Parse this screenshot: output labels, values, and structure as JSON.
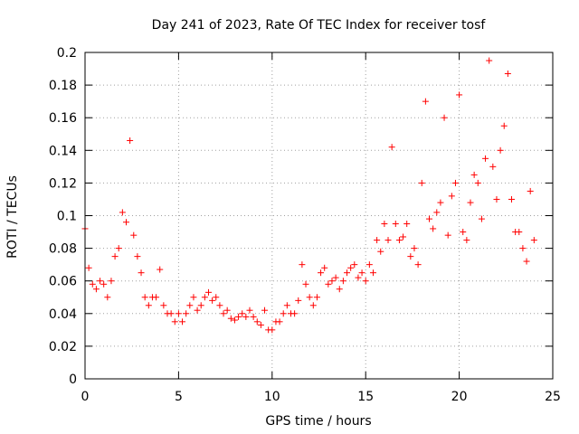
{
  "chart_data": {
    "type": "scatter",
    "title": "Day 241 of 2023, Rate Of TEC Index for receiver tosf",
    "xlabel": "GPS time / hours",
    "ylabel": "ROTI / TECUs",
    "xlim": [
      0,
      25
    ],
    "ylim": [
      0,
      0.2
    ],
    "x_ticks": [
      0,
      5,
      10,
      15,
      20,
      25
    ],
    "y_ticks": [
      0,
      0.02,
      0.04,
      0.06,
      0.08,
      0.1,
      0.12,
      0.14,
      0.16,
      0.18,
      0.2
    ],
    "x_tick_labels": [
      "0",
      "5",
      "10",
      "15",
      "20",
      "25"
    ],
    "y_tick_labels": [
      "0",
      "0.02",
      "0.04",
      "0.06",
      "0.08",
      "0.1",
      "0.12",
      "0.14",
      "0.16",
      "0.18",
      "0.2"
    ],
    "grid": true,
    "marker": "+",
    "marker_color": "#ff0000",
    "series": [
      {
        "name": "ROTI",
        "x": [
          0.0,
          0.2,
          0.4,
          0.6,
          0.8,
          1.0,
          1.2,
          1.4,
          1.6,
          1.8,
          2.0,
          2.2,
          2.4,
          2.6,
          2.8,
          3.0,
          3.2,
          3.4,
          3.6,
          3.8,
          4.0,
          4.2,
          4.4,
          4.6,
          4.8,
          5.0,
          5.2,
          5.4,
          5.6,
          5.8,
          6.0,
          6.2,
          6.4,
          6.6,
          6.8,
          7.0,
          7.2,
          7.4,
          7.6,
          7.8,
          8.0,
          8.2,
          8.4,
          8.6,
          8.8,
          9.0,
          9.2,
          9.4,
          9.6,
          9.8,
          10.0,
          10.2,
          10.4,
          10.6,
          10.8,
          11.0,
          11.2,
          11.4,
          11.6,
          11.8,
          12.0,
          12.2,
          12.4,
          12.6,
          12.8,
          13.0,
          13.2,
          13.4,
          13.6,
          13.8,
          14.0,
          14.2,
          14.4,
          14.6,
          14.8,
          15.0,
          15.2,
          15.4,
          15.6,
          15.8,
          16.0,
          16.2,
          16.4,
          16.6,
          16.8,
          17.0,
          17.2,
          17.4,
          17.6,
          17.8,
          18.0,
          18.2,
          18.4,
          18.6,
          18.8,
          19.0,
          19.2,
          19.4,
          19.6,
          19.8,
          20.0,
          20.2,
          20.4,
          20.6,
          20.8,
          21.0,
          21.2,
          21.4,
          21.6,
          21.8,
          22.0,
          22.2,
          22.4,
          22.6,
          22.8,
          23.0,
          23.2,
          23.4,
          23.6,
          23.8,
          24.0
        ],
        "y": [
          0.092,
          0.068,
          0.058,
          0.055,
          0.06,
          0.058,
          0.05,
          0.06,
          0.075,
          0.08,
          0.102,
          0.096,
          0.146,
          0.088,
          0.075,
          0.065,
          0.05,
          0.045,
          0.05,
          0.05,
          0.067,
          0.045,
          0.04,
          0.04,
          0.035,
          0.04,
          0.035,
          0.04,
          0.045,
          0.05,
          0.042,
          0.045,
          0.05,
          0.053,
          0.048,
          0.05,
          0.045,
          0.04,
          0.042,
          0.037,
          0.036,
          0.038,
          0.04,
          0.038,
          0.042,
          0.038,
          0.035,
          0.033,
          0.042,
          0.03,
          0.03,
          0.035,
          0.035,
          0.04,
          0.045,
          0.04,
          0.04,
          0.048,
          0.07,
          0.058,
          0.05,
          0.045,
          0.05,
          0.065,
          0.068,
          0.058,
          0.06,
          0.062,
          0.055,
          0.06,
          0.065,
          0.068,
          0.07,
          0.062,
          0.065,
          0.06,
          0.07,
          0.065,
          0.085,
          0.078,
          0.095,
          0.085,
          0.142,
          0.095,
          0.085,
          0.087,
          0.095,
          0.075,
          0.08,
          0.07,
          0.12,
          0.17,
          0.098,
          0.092,
          0.102,
          0.108,
          0.16,
          0.088,
          0.112,
          0.12,
          0.174,
          0.09,
          0.085,
          0.108,
          0.125,
          0.12,
          0.098,
          0.135,
          0.195,
          0.13,
          0.11,
          0.14,
          0.155,
          0.187,
          0.11,
          0.09,
          0.09,
          0.08,
          0.072,
          0.115,
          0.085
        ]
      }
    ]
  }
}
